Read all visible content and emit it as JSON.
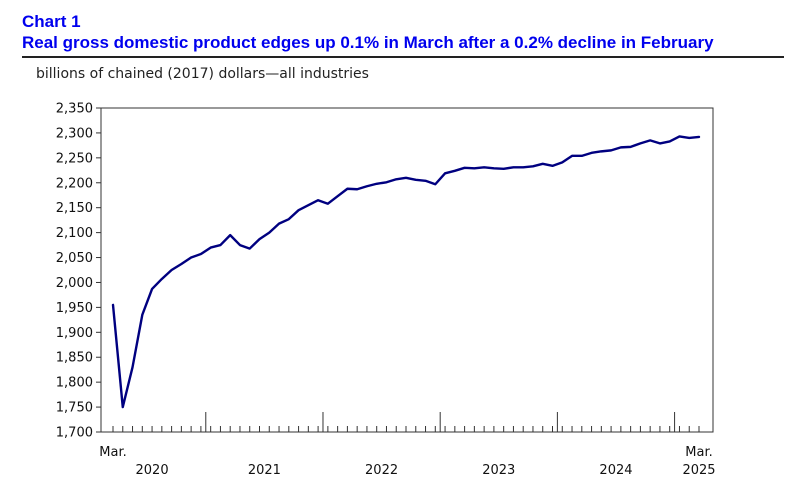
{
  "header": {
    "chart_label": "Chart 1",
    "title": "Real gross domestic product edges up 0.1% in March after a 0.2% decline in February"
  },
  "chart_data": {
    "type": "line",
    "title": "Real gross domestic product edges up 0.1% in March after a 0.2% decline in February",
    "ylabel": "billions of chained (2017) dollars—all industries",
    "xlabel": "",
    "ylim": [
      1700,
      2350
    ],
    "y_ticks": [
      1700,
      1750,
      1800,
      1850,
      1900,
      1950,
      2000,
      2050,
      2100,
      2150,
      2200,
      2250,
      2300,
      2350
    ],
    "y_tick_labels": [
      "1,700",
      "1,750",
      "1,800",
      "1,850",
      "1,900",
      "1,950",
      "2,000",
      "2,050",
      "2,100",
      "2,150",
      "2,200",
      "2,250",
      "2,300",
      "2,350"
    ],
    "x_month_labels": [
      {
        "index": 0,
        "label": "Mar."
      },
      {
        "index": 60,
        "label": "Mar."
      }
    ],
    "x_year_labels": [
      {
        "label": "2020",
        "center_index": 4
      },
      {
        "label": "2021",
        "center_index": 15.5
      },
      {
        "label": "2022",
        "center_index": 27.5
      },
      {
        "label": "2023",
        "center_index": 39.5
      },
      {
        "label": "2024",
        "center_index": 51.5
      },
      {
        "label": "2025",
        "center_index": 60
      }
    ],
    "year_boundaries_after_index": [
      9.5,
      21.5,
      33.5,
      45.5,
      57.5
    ],
    "grid": false,
    "series": [
      {
        "name": "Real GDP",
        "color": "#000080",
        "start": "2020-03",
        "end": "2025-03",
        "values": [
          1955,
          1750,
          1830,
          1935,
          1987,
          2007,
          2025,
          2037,
          2050,
          2057,
          2070,
          2075,
          2095,
          2075,
          2068,
          2087,
          2100,
          2118,
          2127,
          2145,
          2155,
          2165,
          2158,
          2173,
          2188,
          2187,
          2193,
          2198,
          2201,
          2207,
          2210,
          2206,
          2204,
          2197,
          2219,
          2224,
          2230,
          2229,
          2231,
          2229,
          2228,
          2231,
          2231,
          2233,
          2238,
          2234,
          2241,
          2254,
          2254,
          2260,
          2263,
          2265,
          2271,
          2272,
          2279,
          2285,
          2279,
          2283,
          2293,
          2290,
          2292
        ]
      }
    ]
  }
}
